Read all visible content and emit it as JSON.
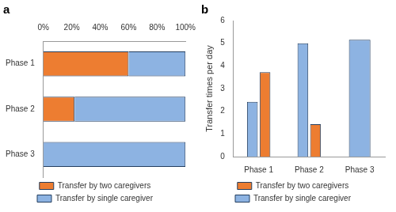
{
  "chart_data": [
    {
      "type": "bar",
      "title": "a",
      "orientation": "horizontal",
      "stacked": true,
      "categories": [
        "Phase 1",
        "Phase 2",
        "Phase 3"
      ],
      "series": [
        {
          "name": "Transfer by two caregivers",
          "color": "#ed7d31",
          "values": [
            60,
            22,
            0
          ]
        },
        {
          "name": "Transfer by single caregiver",
          "color": "#8db3e2",
          "values": [
            40,
            78,
            100
          ]
        }
      ],
      "xlim": [
        0,
        100
      ],
      "xticks": [
        {
          "value": 0,
          "label": "0%"
        },
        {
          "value": 20,
          "label": "20%"
        },
        {
          "value": 40,
          "label": "40%"
        },
        {
          "value": 60,
          "label": "60%"
        },
        {
          "value": 80,
          "label": "80%"
        },
        {
          "value": 100,
          "label": "100%"
        }
      ],
      "grid": false,
      "legend": "bottom"
    },
    {
      "type": "bar",
      "title": "b",
      "categories": [
        "Phase 1",
        "Phase 2",
        "Phase 3"
      ],
      "y_label": "Transfer times per day",
      "series": [
        {
          "name": "Transfer by single caregiver",
          "color": "#8db3e2",
          "values": [
            2.42,
            5.0,
            5.15
          ]
        },
        {
          "name": "Transfer by two caregivers",
          "color": "#ed7d31",
          "values": [
            3.72,
            1.43,
            null
          ]
        }
      ],
      "ylim": [
        0,
        6
      ],
      "yticks": [
        0,
        1,
        2,
        3,
        4,
        5,
        6
      ],
      "grid": false,
      "legend": "bottom"
    }
  ]
}
